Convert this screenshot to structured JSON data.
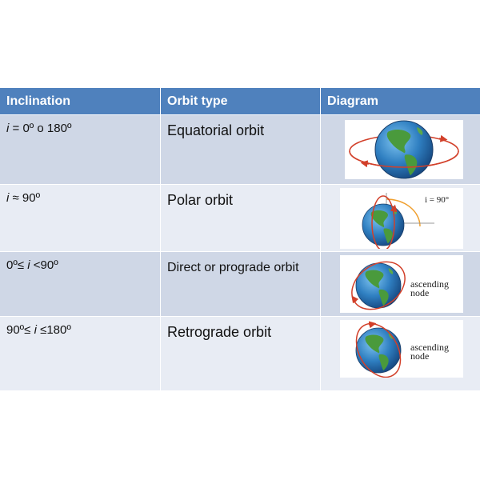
{
  "table": {
    "headers": {
      "inclination": "Inclination",
      "orbit_type": "Orbit type",
      "diagram": "Diagram"
    },
    "rows": [
      {
        "incl_var": "i",
        "incl_rest": " = 0º o 180º",
        "orbit_type": "Equatorial orbit"
      },
      {
        "incl_var": "i",
        "incl_rest": " ≈ 90º",
        "orbit_type": "Polar orbit",
        "diagram_label": "i = 90°"
      },
      {
        "incl_pre": "0º≤ ",
        "incl_var": "i",
        "incl_rest": " <90º",
        "orbit_type": "Direct or prograde orbit",
        "diagram_label": [
          "ascending",
          "node"
        ]
      },
      {
        "incl_pre": "90º≤ ",
        "incl_var": "i",
        "incl_rest": " ≤180º",
        "orbit_type": "Retrograde orbit",
        "diagram_label": [
          "ascending",
          "node"
        ]
      }
    ]
  },
  "colors": {
    "header": "#4f81bd",
    "row_dark": "#cfd7e6",
    "row_light": "#e8ecf4",
    "orbit": "#d2402a",
    "ocean": "#2f7fc1",
    "land": "#4a9a3c"
  },
  "icons": [
    "globe-icon",
    "orbit-path"
  ]
}
